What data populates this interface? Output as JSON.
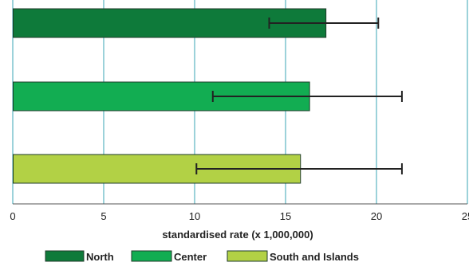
{
  "chart_data": {
    "type": "bar",
    "orientation": "horizontal",
    "categories": [
      "North",
      "Center",
      "South and Islands"
    ],
    "values": [
      17.2,
      16.3,
      15.8
    ],
    "error_low": [
      14.1,
      11.0,
      10.1
    ],
    "error_high": [
      20.1,
      21.4,
      21.4
    ],
    "colors": [
      "#0e7a3a",
      "#12ad52",
      "#b2d145"
    ],
    "xlabel": "standardised rate (x 1,000,000)",
    "ylabel": "",
    "xlim": [
      0,
      25
    ],
    "xticks": [
      "0",
      "5",
      "10",
      "15",
      "20",
      "25"
    ],
    "grid": true,
    "legend": {
      "position": "bottom",
      "entries": [
        "North",
        "Center",
        "South and Islands"
      ]
    },
    "gridline_color": "#39a6b4",
    "bar_border_color": "#1f3b2a",
    "error_bar_color": "#222222"
  }
}
